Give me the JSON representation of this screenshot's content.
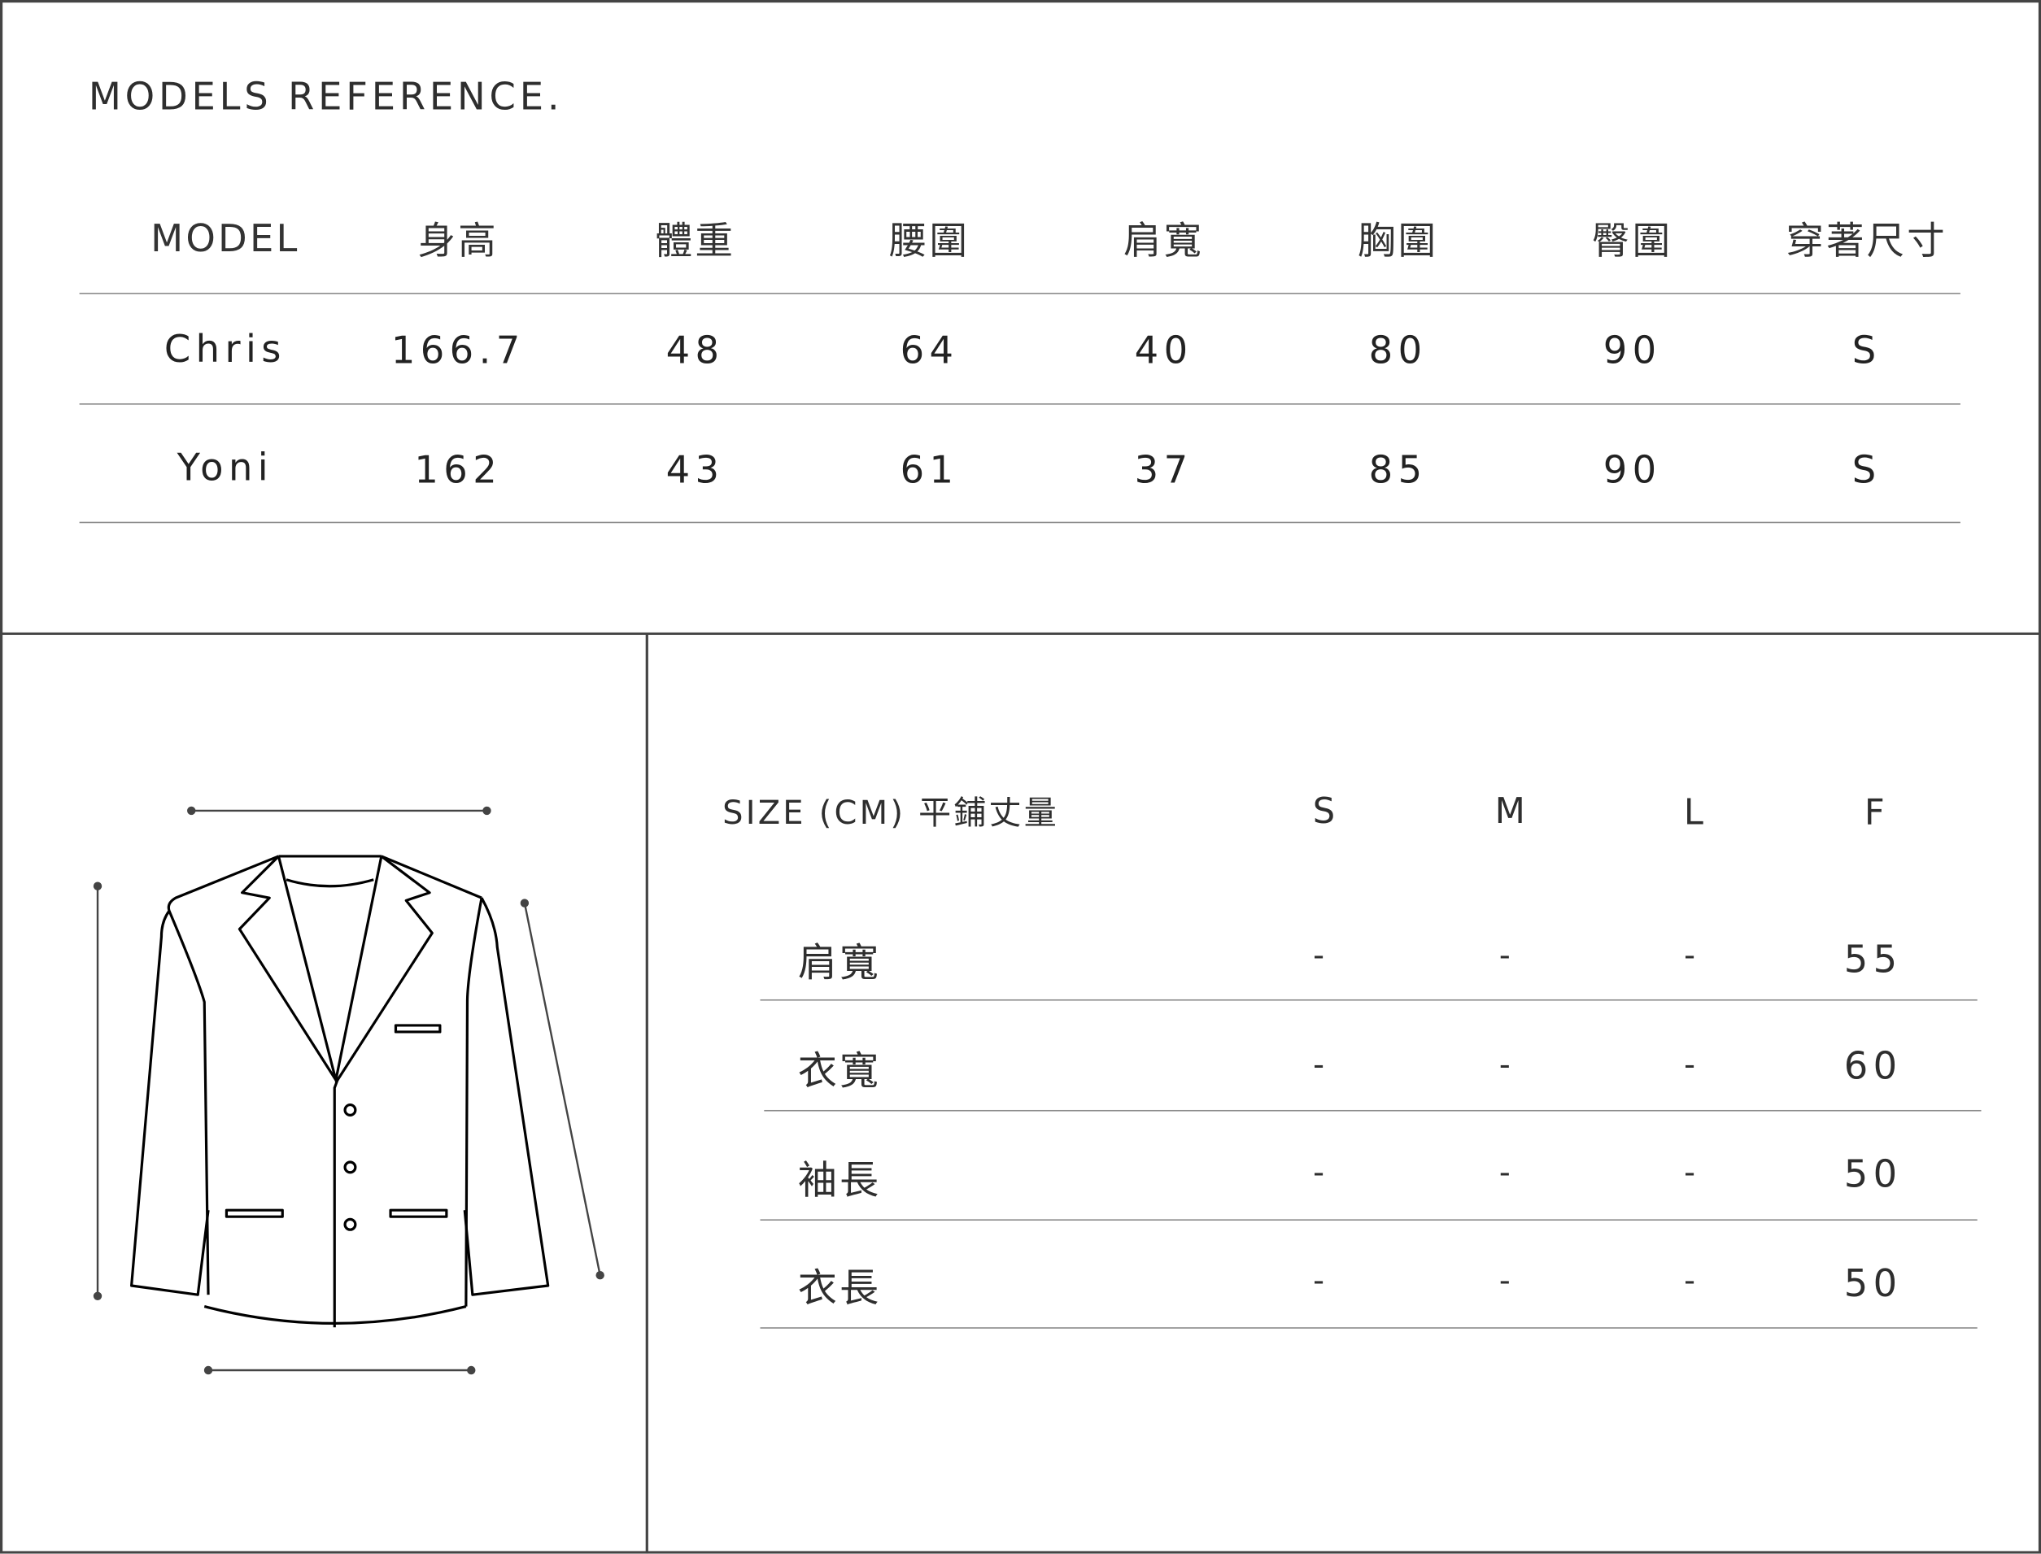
{
  "models_reference": {
    "title": "MODELS REFERENCE.",
    "headers": [
      "MODEL",
      "身高",
      "體重",
      "腰圍",
      "肩寬",
      "胸圍",
      "臀圍",
      "穿著尺寸"
    ],
    "rows": [
      [
        "Chris",
        "166.7",
        "48",
        "64",
        "40",
        "80",
        "90",
        "S"
      ],
      [
        "Yoni",
        "162",
        "43",
        "61",
        "37",
        "85",
        "90",
        "S"
      ]
    ]
  },
  "size_chart": {
    "title": "SIZE (CM) 平鋪丈量",
    "sizes": [
      "S",
      "M",
      "L",
      "F"
    ],
    "rows": [
      {
        "label": "肩寬",
        "values": [
          "-",
          "-",
          "-",
          "55"
        ]
      },
      {
        "label": "衣寬",
        "values": [
          "-",
          "-",
          "-",
          "60"
        ]
      },
      {
        "label": "袖長",
        "values": [
          "-",
          "-",
          "-",
          "50"
        ]
      },
      {
        "label": "衣長",
        "values": [
          "-",
          "-",
          "-",
          "50"
        ]
      }
    ]
  },
  "illustration": {
    "icon": "blazer-measurement-diagram",
    "line_color": "#000000",
    "measure_color": "#444444"
  }
}
